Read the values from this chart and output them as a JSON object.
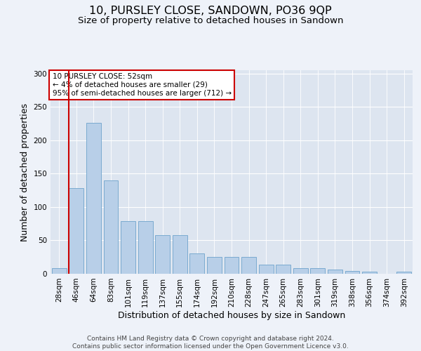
{
  "title": "10, PURSLEY CLOSE, SANDOWN, PO36 9QP",
  "subtitle": "Size of property relative to detached houses in Sandown",
  "xlabel": "Distribution of detached houses by size in Sandown",
  "ylabel": "Number of detached properties",
  "categories": [
    "28sqm",
    "46sqm",
    "64sqm",
    "83sqm",
    "101sqm",
    "119sqm",
    "137sqm",
    "155sqm",
    "174sqm",
    "192sqm",
    "210sqm",
    "228sqm",
    "247sqm",
    "265sqm",
    "283sqm",
    "301sqm",
    "319sqm",
    "338sqm",
    "356sqm",
    "374sqm",
    "392sqm"
  ],
  "values": [
    8,
    128,
    226,
    140,
    79,
    79,
    58,
    58,
    31,
    25,
    25,
    25,
    14,
    14,
    8,
    8,
    6,
    4,
    3,
    0,
    3
  ],
  "bar_color": "#b8cfe8",
  "bar_edge_color": "#7aaad0",
  "highlight_line_color": "#cc0000",
  "highlight_bar_idx": 1,
  "ylim": [
    0,
    305
  ],
  "yticks": [
    0,
    50,
    100,
    150,
    200,
    250,
    300
  ],
  "annotation_title": "10 PURSLEY CLOSE: 52sqm",
  "annotation_line1": "← 4% of detached houses are smaller (29)",
  "annotation_line2": "95% of semi-detached houses are larger (712) →",
  "annotation_box_color": "#ffffff",
  "annotation_border_color": "#cc0000",
  "footer_line1": "Contains HM Land Registry data © Crown copyright and database right 2024.",
  "footer_line2": "Contains public sector information licensed under the Open Government Licence v3.0.",
  "fig_bg_color": "#eef2f9",
  "plot_bg_color": "#dde5f0",
  "title_fontsize": 11.5,
  "subtitle_fontsize": 9.5,
  "axis_label_fontsize": 9,
  "tick_fontsize": 7.5,
  "footer_fontsize": 6.5
}
